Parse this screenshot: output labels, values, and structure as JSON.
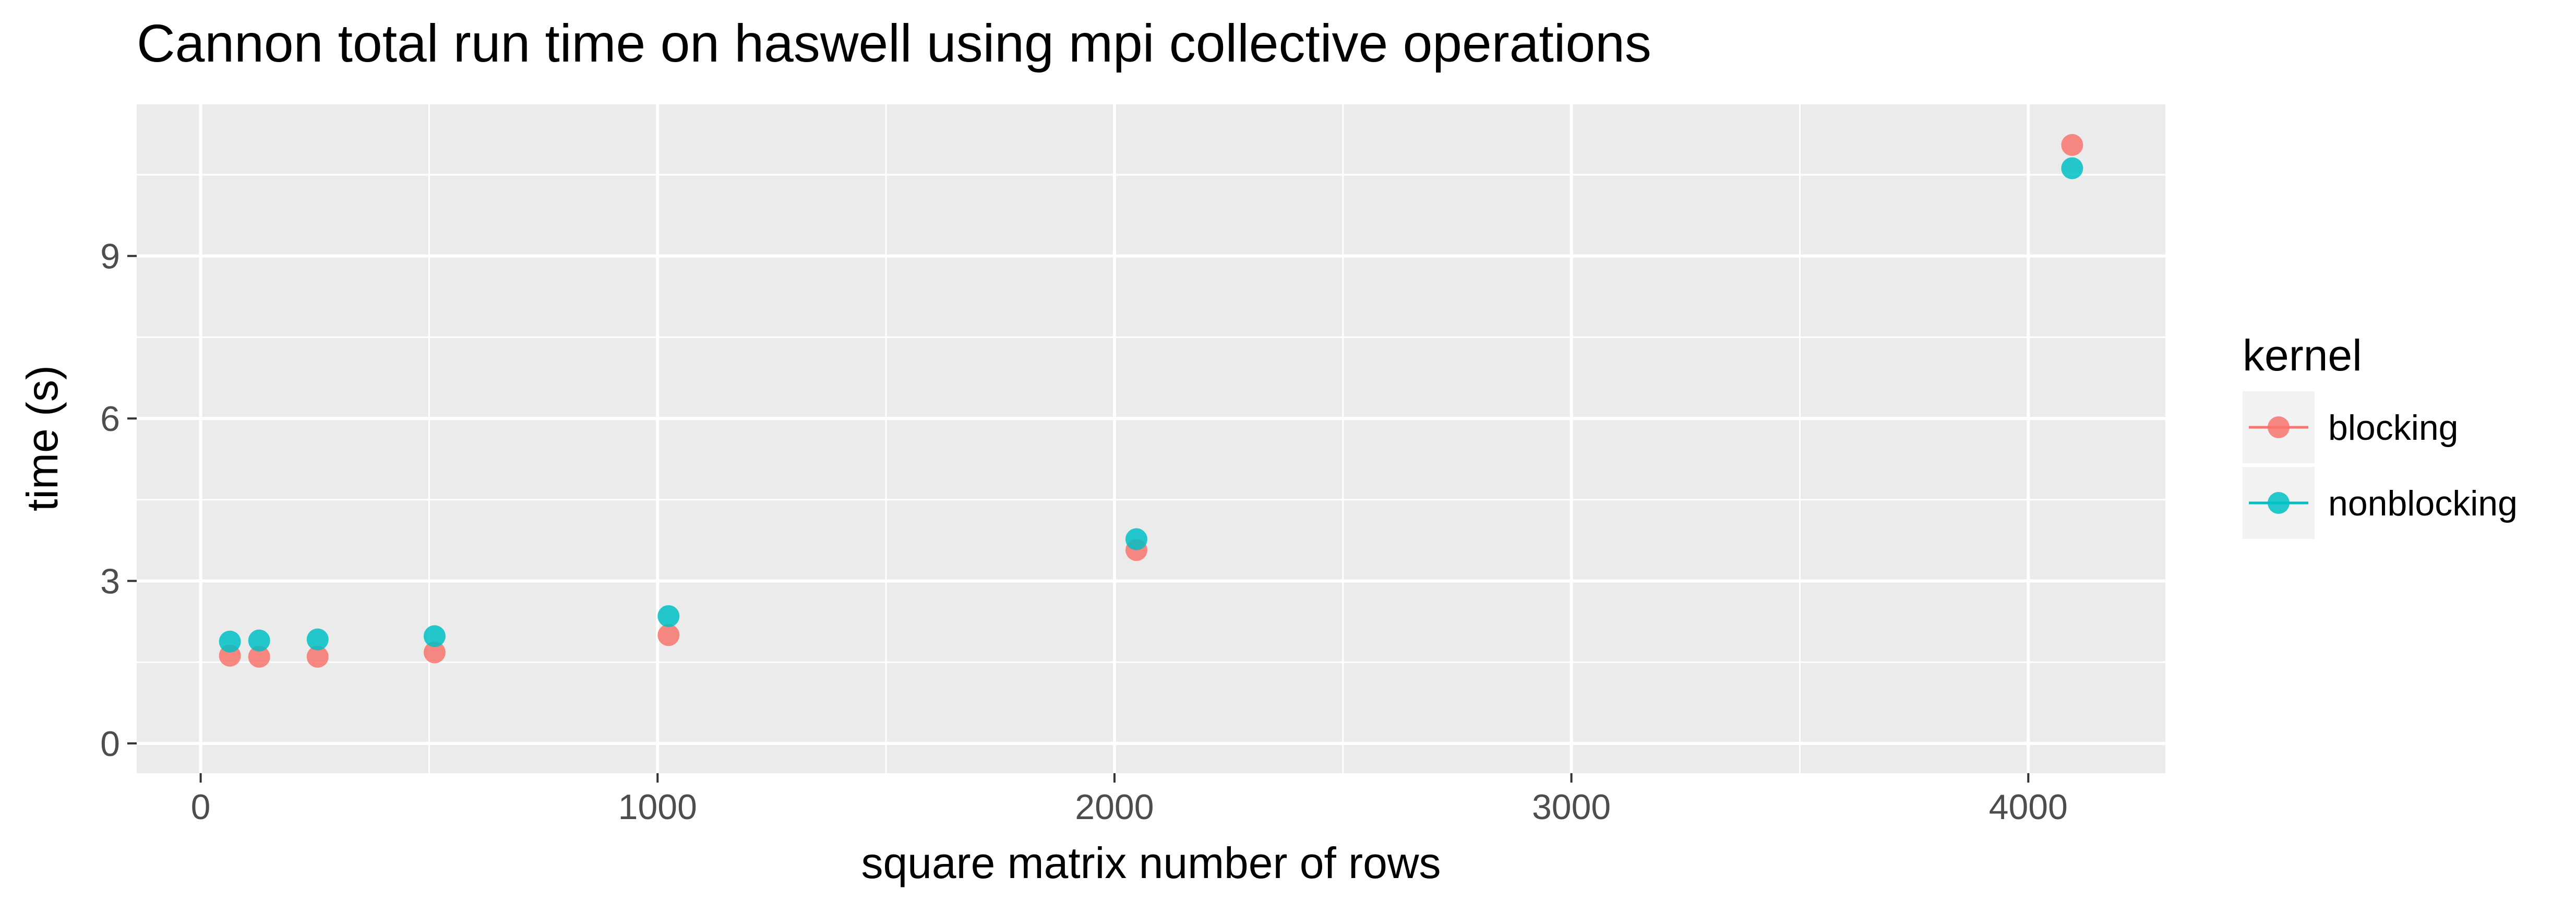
{
  "chart_data": {
    "type": "scatter",
    "title": "Cannon total run time on haswell using mpi collective operations",
    "xlabel": "square matrix number of rows",
    "ylabel": "time (s)",
    "xlim": [
      -140,
      4300
    ],
    "ylim": [
      -0.55,
      11.8
    ],
    "x_ticks": [
      0,
      1000,
      2000,
      3000,
      4000
    ],
    "y_ticks": [
      0,
      3,
      6,
      9
    ],
    "x_tick_labels": [
      "0",
      "1000",
      "2000",
      "3000",
      "4000"
    ],
    "y_tick_labels": [
      "0",
      "3",
      "6",
      "9"
    ],
    "grid": true,
    "legend": {
      "title": "kernel",
      "position": "right"
    },
    "series": [
      {
        "name": "blocking",
        "color": "#F8766D",
        "points": [
          {
            "x": 64,
            "y": 1.62
          },
          {
            "x": 128,
            "y": 1.6
          },
          {
            "x": 256,
            "y": 1.6
          },
          {
            "x": 512,
            "y": 1.68
          },
          {
            "x": 1024,
            "y": 2.0
          },
          {
            "x": 2048,
            "y": 3.57
          },
          {
            "x": 4096,
            "y": 11.05
          }
        ]
      },
      {
        "name": "nonblocking",
        "color": "#00BFC4",
        "points": [
          {
            "x": 64,
            "y": 1.88
          },
          {
            "x": 128,
            "y": 1.9
          },
          {
            "x": 256,
            "y": 1.92
          },
          {
            "x": 512,
            "y": 1.98
          },
          {
            "x": 1024,
            "y": 2.35
          },
          {
            "x": 2048,
            "y": 3.77
          },
          {
            "x": 4096,
            "y": 10.62
          }
        ]
      }
    ]
  }
}
